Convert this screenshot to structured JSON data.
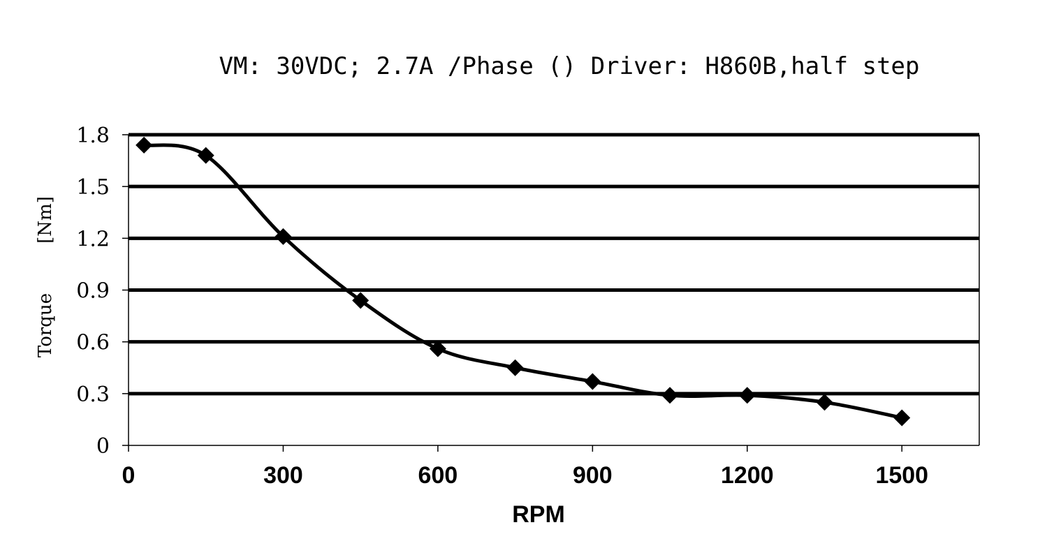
{
  "chart_data": {
    "type": "line",
    "title": "VM: 30VDC;  2.7A /Phase ()  Driver: H860B,half step",
    "xlabel": "RPM",
    "ylabel_quantity": "Torque",
    "ylabel_unit": "[Nm]",
    "xlim": [
      0,
      1650
    ],
    "ylim": [
      0,
      1.8
    ],
    "x_ticks": [
      "0",
      "300",
      "600",
      "900",
      "1200",
      "1500"
    ],
    "y_ticks": [
      "0",
      "0.3",
      "0.6",
      "0.9",
      "1.2",
      "1.5",
      "1.8"
    ],
    "grid": "horizontal",
    "series": [
      {
        "color": "#000000",
        "marker": "diamond",
        "smooth": true,
        "x": [
          30,
          150,
          300,
          450,
          600,
          750,
          900,
          1050,
          1200,
          1350,
          1500
        ],
        "y": [
          1.74,
          1.68,
          1.21,
          0.84,
          0.56,
          0.45,
          0.37,
          0.29,
          0.29,
          0.25,
          0.16
        ]
      }
    ]
  }
}
